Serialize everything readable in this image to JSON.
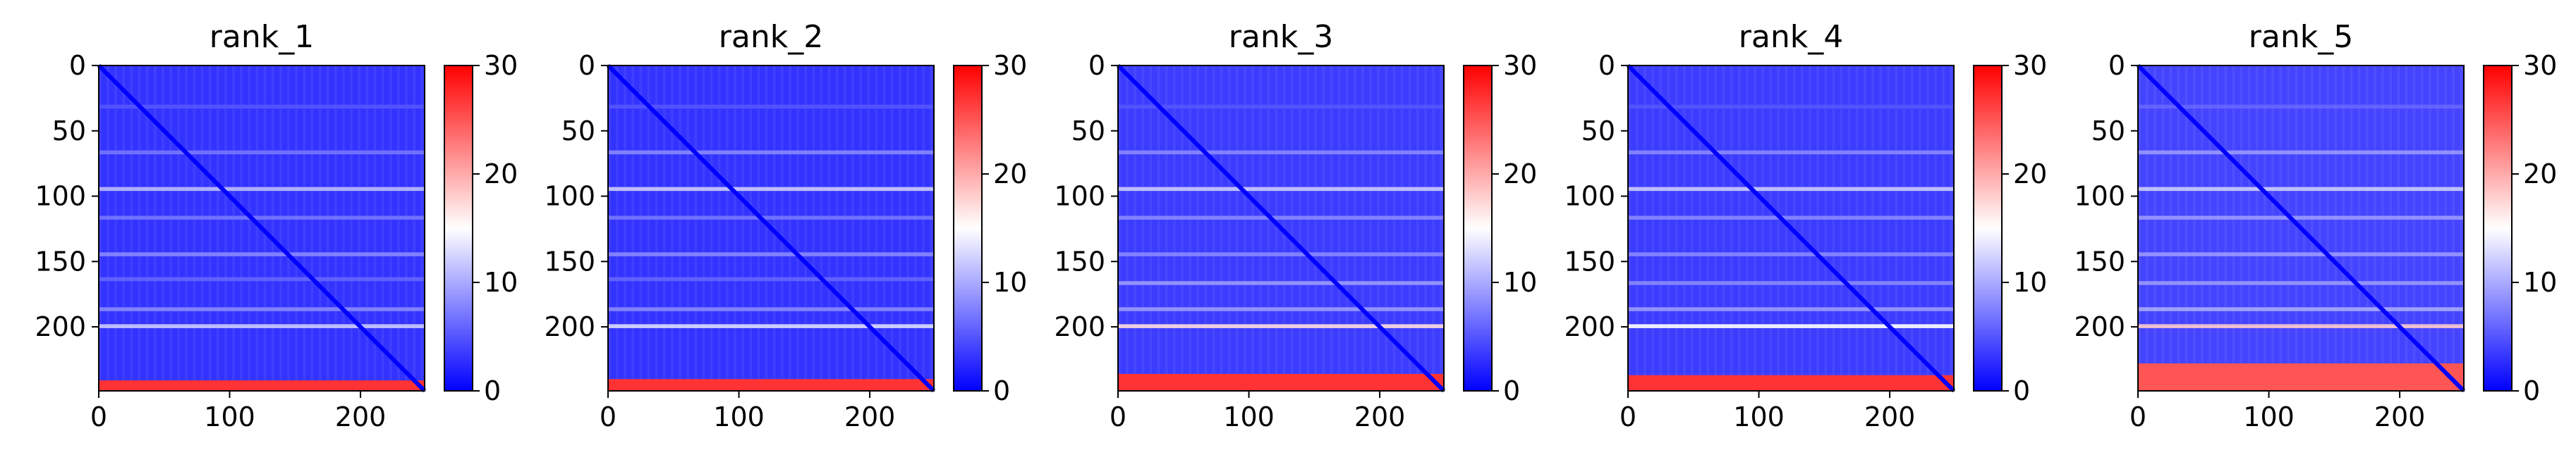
{
  "chart_data": [
    {
      "type": "heatmap",
      "title": "rank_1",
      "xlim": [
        0,
        249
      ],
      "ylim": [
        249,
        0
      ],
      "x_ticks": [
        0,
        100,
        200
      ],
      "y_ticks": [
        0,
        50,
        100,
        150,
        200
      ],
      "x_tick_labels": [
        "0",
        "100",
        "200"
      ],
      "y_tick_labels": [
        "0",
        "50",
        "100",
        "150",
        "200"
      ],
      "colorbar": {
        "min": 0,
        "max": 30,
        "ticks": [
          0,
          10,
          20,
          30
        ],
        "tick_labels": [
          "0",
          "10",
          "20",
          "30"
        ],
        "colormap": "bwr",
        "colors": {
          "low": "#0000ff",
          "mid": "#ffffff",
          "high": "#ff0000"
        }
      },
      "matrix_features": {
        "background_value": 3,
        "diagonal_value": 0,
        "stripe_rows": [
          30,
          65,
          93,
          115,
          143,
          162,
          185,
          198
        ],
        "stripe_values": [
          5,
          7,
          11,
          7,
          8,
          6,
          8,
          12
        ],
        "bottom_band_rows": [
          241,
          249
        ],
        "bottom_band_value": 27
      }
    },
    {
      "type": "heatmap",
      "title": "rank_2",
      "xlim": [
        0,
        249
      ],
      "ylim": [
        249,
        0
      ],
      "x_ticks": [
        0,
        100,
        200
      ],
      "y_ticks": [
        0,
        50,
        100,
        150,
        200
      ],
      "x_tick_labels": [
        "0",
        "100",
        "200"
      ],
      "y_tick_labels": [
        "0",
        "50",
        "100",
        "150",
        "200"
      ],
      "colorbar": {
        "min": 0,
        "max": 30,
        "ticks": [
          0,
          10,
          20,
          30
        ],
        "tick_labels": [
          "0",
          "10",
          "20",
          "30"
        ],
        "colormap": "bwr",
        "colors": {
          "low": "#0000ff",
          "mid": "#ffffff",
          "high": "#ff0000"
        }
      },
      "matrix_features": {
        "background_value": 3,
        "diagonal_value": 0,
        "stripe_rows": [
          30,
          65,
          93,
          115,
          143,
          162,
          185,
          198
        ],
        "stripe_values": [
          5,
          8,
          12,
          7,
          8,
          6,
          8,
          13
        ],
        "bottom_band_rows": [
          240,
          249
        ],
        "bottom_band_value": 27
      }
    },
    {
      "type": "heatmap",
      "title": "rank_3",
      "xlim": [
        0,
        249
      ],
      "ylim": [
        249,
        0
      ],
      "x_ticks": [
        0,
        100,
        200
      ],
      "y_ticks": [
        0,
        50,
        100,
        150,
        200
      ],
      "x_tick_labels": [
        "0",
        "100",
        "200"
      ],
      "y_tick_labels": [
        "0",
        "50",
        "100",
        "150",
        "200"
      ],
      "colorbar": {
        "min": 0,
        "max": 30,
        "ticks": [
          0,
          10,
          20,
          30
        ],
        "tick_labels": [
          "0",
          "10",
          "20",
          "30"
        ],
        "colormap": "bwr",
        "colors": {
          "low": "#0000ff",
          "mid": "#ffffff",
          "high": "#ff0000"
        }
      },
      "matrix_features": {
        "background_value": 3.5,
        "diagonal_value": 0,
        "stripe_rows": [
          30,
          65,
          93,
          115,
          143,
          165,
          185,
          198
        ],
        "stripe_values": [
          5,
          8,
          12,
          8,
          8,
          9,
          9,
          17
        ],
        "bottom_band_rows": [
          236,
          249
        ],
        "bottom_band_value": 27
      }
    },
    {
      "type": "heatmap",
      "title": "rank_4",
      "xlim": [
        0,
        249
      ],
      "ylim": [
        249,
        0
      ],
      "x_ticks": [
        0,
        100,
        200
      ],
      "y_ticks": [
        0,
        50,
        100,
        150,
        200
      ],
      "x_tick_labels": [
        "0",
        "100",
        "200"
      ],
      "y_tick_labels": [
        "0",
        "50",
        "100",
        "150",
        "200"
      ],
      "colorbar": {
        "min": 0,
        "max": 30,
        "ticks": [
          0,
          10,
          20,
          30
        ],
        "tick_labels": [
          "0",
          "10",
          "20",
          "30"
        ],
        "colormap": "bwr",
        "colors": {
          "low": "#0000ff",
          "mid": "#ffffff",
          "high": "#ff0000"
        }
      },
      "matrix_features": {
        "background_value": 3.5,
        "diagonal_value": 0,
        "stripe_rows": [
          30,
          65,
          93,
          115,
          143,
          165,
          185,
          198
        ],
        "stripe_values": [
          5,
          8,
          12,
          8,
          8,
          8,
          9,
          15
        ],
        "bottom_band_rows": [
          237,
          249
        ],
        "bottom_band_value": 27
      }
    },
    {
      "type": "heatmap",
      "title": "rank_5",
      "xlim": [
        0,
        249
      ],
      "ylim": [
        249,
        0
      ],
      "x_ticks": [
        0,
        100,
        200
      ],
      "y_ticks": [
        0,
        50,
        100,
        150,
        200
      ],
      "x_tick_labels": [
        "0",
        "100",
        "200"
      ],
      "y_tick_labels": [
        "0",
        "50",
        "100",
        "150",
        "200"
      ],
      "colorbar": {
        "min": 0,
        "max": 30,
        "ticks": [
          0,
          10,
          20,
          30
        ],
        "tick_labels": [
          "0",
          "10",
          "20",
          "30"
        ],
        "colormap": "bwr",
        "colors": {
          "low": "#0000ff",
          "mid": "#ffffff",
          "high": "#ff0000"
        }
      },
      "matrix_features": {
        "background_value": 4,
        "diagonal_value": 0,
        "stripe_rows": [
          30,
          65,
          93,
          115,
          143,
          165,
          185,
          198
        ],
        "stripe_values": [
          6,
          9,
          12,
          9,
          9,
          9,
          10,
          18
        ],
        "bottom_band_rows": [
          228,
          249
        ],
        "bottom_band_value": 25
      }
    }
  ]
}
